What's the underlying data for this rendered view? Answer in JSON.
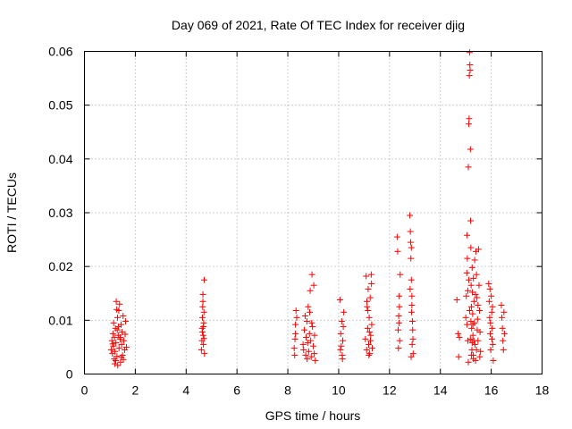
{
  "chart_data": {
    "type": "scatter",
    "title": "Day 069 of 2021, Rate Of TEC Index for receiver djig",
    "xlabel": "GPS time / hours",
    "ylabel": "ROTI / TECUs",
    "xlim": [
      0,
      18
    ],
    "ylim": [
      0,
      0.06
    ],
    "xticks": [
      0,
      2,
      4,
      6,
      8,
      10,
      12,
      14,
      16,
      18
    ],
    "xtick_labels": [
      "0",
      "2",
      "4",
      "6",
      "8",
      "10",
      "12",
      "14",
      "16",
      "18"
    ],
    "yticks": [
      0,
      0.01,
      0.02,
      0.03,
      0.04,
      0.05,
      0.06
    ],
    "ytick_labels": [
      "0",
      "0.01",
      "0.02",
      "0.03",
      "0.04",
      "0.05",
      "0.06"
    ],
    "grid": true,
    "marker": "+",
    "color": "#ff0000",
    "series": [
      {
        "name": "ROTI",
        "points": [
          [
            1.05,
            0.0045
          ],
          [
            1.08,
            0.0062
          ],
          [
            1.1,
            0.0038
          ],
          [
            1.12,
            0.0075
          ],
          [
            1.14,
            0.0052
          ],
          [
            1.15,
            0.0095
          ],
          [
            1.17,
            0.0028
          ],
          [
            1.18,
            0.0068
          ],
          [
            1.2,
            0.0042
          ],
          [
            1.22,
            0.0085
          ],
          [
            1.24,
            0.0058
          ],
          [
            1.25,
            0.0135
          ],
          [
            1.27,
            0.012
          ],
          [
            1.28,
            0.0033
          ],
          [
            1.3,
            0.0105
          ],
          [
            1.31,
            0.0016
          ],
          [
            1.33,
            0.0072
          ],
          [
            1.34,
            0.0088
          ],
          [
            1.36,
            0.0048
          ],
          [
            1.38,
            0.013
          ],
          [
            1.4,
            0.0065
          ],
          [
            1.42,
            0.0022
          ],
          [
            1.44,
            0.0092
          ],
          [
            1.46,
            0.0055
          ],
          [
            1.48,
            0.0078
          ],
          [
            1.5,
            0.0035
          ],
          [
            1.52,
            0.0108
          ],
          [
            1.55,
            0.0062
          ],
          [
            1.58,
            0.0045
          ],
          [
            1.62,
            0.0098
          ],
          [
            1.65,
            0.005
          ],
          [
            1.23,
            0.0025
          ],
          [
            1.35,
            0.0118
          ],
          [
            1.45,
            0.0031
          ],
          [
            1.11,
            0.0056
          ],
          [
            1.19,
            0.0019
          ],
          [
            1.29,
            0.0082
          ],
          [
            1.41,
            0.0068
          ],
          [
            1.53,
            0.0027
          ],
          [
            1.6,
            0.0074
          ],
          [
            4.6,
            0.0045
          ],
          [
            4.62,
            0.0062
          ],
          [
            4.63,
            0.0085
          ],
          [
            4.64,
            0.0105
          ],
          [
            4.65,
            0.0125
          ],
          [
            4.66,
            0.0148
          ],
          [
            4.67,
            0.0072
          ],
          [
            4.68,
            0.0055
          ],
          [
            4.69,
            0.0095
          ],
          [
            4.7,
            0.0115
          ],
          [
            4.71,
            0.0175
          ],
          [
            4.72,
            0.0038
          ],
          [
            4.66,
            0.0135
          ],
          [
            4.64,
            0.0078
          ],
          [
            4.68,
            0.0088
          ],
          [
            4.7,
            0.0066
          ],
          [
            8.25,
            0.0048
          ],
          [
            8.28,
            0.0065
          ],
          [
            8.3,
            0.0092
          ],
          [
            8.32,
            0.0118
          ],
          [
            8.27,
            0.0035
          ],
          [
            8.35,
            0.0105
          ],
          [
            8.3,
            0.0075
          ],
          [
            8.6,
            0.0055
          ],
          [
            8.62,
            0.0045
          ],
          [
            8.65,
            0.0082
          ],
          [
            8.7,
            0.0035
          ],
          [
            8.72,
            0.0068
          ],
          [
            8.75,
            0.0098
          ],
          [
            8.78,
            0.0058
          ],
          [
            8.8,
            0.0125
          ],
          [
            8.82,
            0.0042
          ],
          [
            8.85,
            0.0075
          ],
          [
            8.88,
            0.0155
          ],
          [
            8.9,
            0.0062
          ],
          [
            8.92,
            0.0032
          ],
          [
            8.95,
            0.0185
          ],
          [
            8.97,
            0.0088
          ],
          [
            9.0,
            0.0052
          ],
          [
            9.02,
            0.0165
          ],
          [
            9.05,
            0.0072
          ],
          [
            9.08,
            0.0025
          ],
          [
            8.68,
            0.0108
          ],
          [
            8.76,
            0.0028
          ],
          [
            8.86,
            0.0115
          ],
          [
            8.94,
            0.0095
          ],
          [
            9.04,
            0.0038
          ],
          [
            10.05,
            0.0138
          ],
          [
            10.08,
            0.0075
          ],
          [
            10.1,
            0.0052
          ],
          [
            10.12,
            0.0098
          ],
          [
            10.14,
            0.0035
          ],
          [
            10.16,
            0.0062
          ],
          [
            10.18,
            0.0088
          ],
          [
            10.2,
            0.0115
          ],
          [
            10.07,
            0.0045
          ],
          [
            10.15,
            0.0028
          ],
          [
            11.05,
            0.0065
          ],
          [
            11.08,
            0.0182
          ],
          [
            11.1,
            0.0045
          ],
          [
            11.12,
            0.0125
          ],
          [
            11.14,
            0.0085
          ],
          [
            11.16,
            0.0158
          ],
          [
            11.18,
            0.0055
          ],
          [
            11.2,
            0.0105
          ],
          [
            11.22,
            0.0038
          ],
          [
            11.24,
            0.0142
          ],
          [
            11.26,
            0.0072
          ],
          [
            11.28,
            0.0185
          ],
          [
            11.3,
            0.0092
          ],
          [
            11.32,
            0.0048
          ],
          [
            11.15,
            0.0118
          ],
          [
            11.25,
            0.0062
          ],
          [
            11.11,
            0.0135
          ],
          [
            11.21,
            0.0078
          ],
          [
            11.29,
            0.0168
          ],
          [
            11.19,
            0.0035
          ],
          [
            12.3,
            0.0255
          ],
          [
            12.32,
            0.0228
          ],
          [
            12.34,
            0.0082
          ],
          [
            12.36,
            0.0108
          ],
          [
            12.38,
            0.0145
          ],
          [
            12.4,
            0.0062
          ],
          [
            12.42,
            0.0185
          ],
          [
            12.35,
            0.0048
          ],
          [
            12.39,
            0.0125
          ],
          [
            12.37,
            0.0095
          ],
          [
            12.8,
            0.0295
          ],
          [
            12.82,
            0.0265
          ],
          [
            12.84,
            0.0215
          ],
          [
            12.86,
            0.0175
          ],
          [
            12.88,
            0.0145
          ],
          [
            12.9,
            0.0098
          ],
          [
            12.92,
            0.0065
          ],
          [
            12.85,
            0.0032
          ],
          [
            12.87,
            0.0115
          ],
          [
            12.83,
            0.0245
          ],
          [
            12.91,
            0.0082
          ],
          [
            12.81,
            0.0158
          ],
          [
            12.89,
            0.0055
          ],
          [
            12.93,
            0.0038
          ],
          [
            12.86,
            0.0235
          ],
          [
            12.88,
            0.0128
          ],
          [
            14.65,
            0.0138
          ],
          [
            14.7,
            0.0075
          ],
          [
            14.72,
            0.0032
          ],
          [
            14.75,
            0.0068
          ],
          [
            15.0,
            0.0105
          ],
          [
            15.02,
            0.0145
          ],
          [
            15.04,
            0.0188
          ],
          [
            15.05,
            0.0258
          ],
          [
            15.06,
            0.0215
          ],
          [
            15.08,
            0.0062
          ],
          [
            15.1,
            0.0385
          ],
          [
            15.12,
            0.0465
          ],
          [
            15.13,
            0.0475
          ],
          [
            15.14,
            0.0555
          ],
          [
            15.15,
            0.0598
          ],
          [
            15.16,
            0.0575
          ],
          [
            15.17,
            0.0565
          ],
          [
            15.18,
            0.0418
          ],
          [
            15.19,
            0.0285
          ],
          [
            15.2,
            0.0235
          ],
          [
            15.21,
            0.0165
          ],
          [
            15.22,
            0.0125
          ],
          [
            15.23,
            0.0085
          ],
          [
            15.24,
            0.0045
          ],
          [
            15.25,
            0.0198
          ],
          [
            15.26,
            0.0152
          ],
          [
            15.27,
            0.0112
          ],
          [
            15.28,
            0.0072
          ],
          [
            15.29,
            0.0035
          ],
          [
            15.3,
            0.0178
          ],
          [
            15.32,
            0.0135
          ],
          [
            15.34,
            0.0095
          ],
          [
            15.36,
            0.0055
          ],
          [
            15.38,
            0.0025
          ],
          [
            15.4,
            0.0228
          ],
          [
            15.42,
            0.0185
          ],
          [
            15.44,
            0.0142
          ],
          [
            15.46,
            0.0102
          ],
          [
            15.48,
            0.0062
          ],
          [
            15.5,
            0.0232
          ],
          [
            15.52,
            0.0165
          ],
          [
            15.54,
            0.0118
          ],
          [
            15.56,
            0.0078
          ],
          [
            15.58,
            0.0042
          ],
          [
            15.1,
            0.0022
          ],
          [
            15.15,
            0.0118
          ],
          [
            15.2,
            0.0098
          ],
          [
            15.25,
            0.0058
          ],
          [
            15.3,
            0.0028
          ],
          [
            15.35,
            0.0212
          ],
          [
            15.45,
            0.0082
          ],
          [
            15.55,
            0.0032
          ],
          [
            15.08,
            0.0155
          ],
          [
            15.12,
            0.0175
          ],
          [
            15.18,
            0.0065
          ],
          [
            15.28,
            0.0092
          ],
          [
            15.38,
            0.0148
          ],
          [
            15.48,
            0.0128
          ],
          [
            15.05,
            0.0092
          ],
          [
            15.22,
            0.0035
          ],
          [
            15.32,
            0.0062
          ],
          [
            15.42,
            0.0045
          ],
          [
            15.9,
            0.0168
          ],
          [
            15.92,
            0.0135
          ],
          [
            15.94,
            0.0105
          ],
          [
            15.96,
            0.0075
          ],
          [
            15.98,
            0.0045
          ],
          [
            16.0,
            0.0145
          ],
          [
            16.02,
            0.0115
          ],
          [
            16.04,
            0.0085
          ],
          [
            16.06,
            0.0055
          ],
          [
            16.08,
            0.0025
          ],
          [
            15.95,
            0.0158
          ],
          [
            16.05,
            0.0125
          ],
          [
            15.97,
            0.0095
          ],
          [
            16.03,
            0.0065
          ],
          [
            16.4,
            0.0128
          ],
          [
            16.42,
            0.0105
          ],
          [
            16.44,
            0.0085
          ],
          [
            16.46,
            0.0062
          ],
          [
            16.48,
            0.0045
          ],
          [
            16.5,
            0.0115
          ],
          [
            16.52,
            0.0075
          ]
        ]
      }
    ]
  }
}
